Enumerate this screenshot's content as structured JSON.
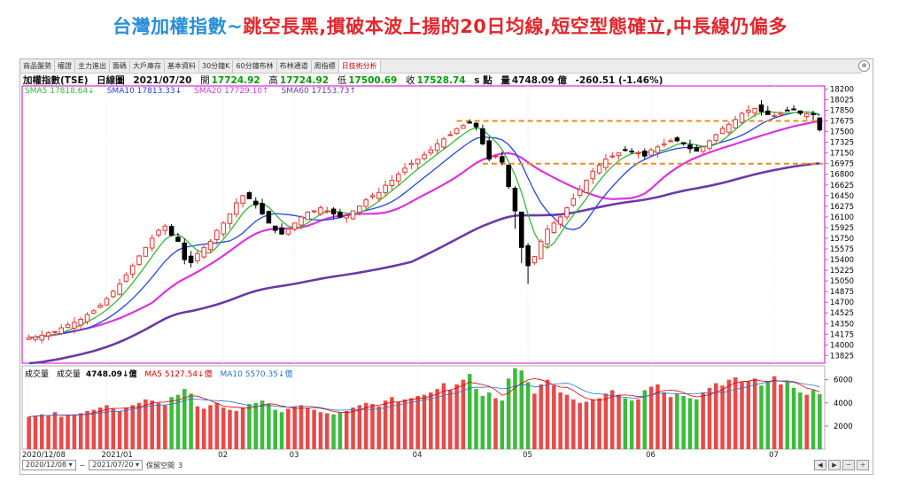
{
  "headline": {
    "part1": "台灣加權指數~",
    "part2": "跳空長黑,摜破本波上揚的20日均線,短空型態確立,中長線仍偏多"
  },
  "tabs": [
    "商品盤勢",
    "權證",
    "主力進出",
    "籌碼",
    "大戶庫存",
    "基本資料",
    "30分鐘K",
    "60分鐘布林",
    "布林通道",
    "周指標",
    "日技術分析"
  ],
  "active_tab": 10,
  "zoom_icon": "zoom-icon",
  "info": {
    "name": "加權指數(TSE)",
    "period": "日線圖",
    "date": "2021/07/20",
    "open_label": "開",
    "open": "17724.92",
    "high_label": "高",
    "high": "17724.92",
    "low_label": "低",
    "low": "17500.69",
    "close_label": "收",
    "close": "17528.74",
    "unit": "s 點",
    "vol_label": "量",
    "vol": "4748.09 億",
    "change": "-260.51 (-1.46%)"
  },
  "ma_legend": [
    {
      "text": "SMA5 17818.64↓",
      "color": "#33bb33"
    },
    {
      "text": "SMA10 17813.33↓",
      "color": "#2244ee"
    },
    {
      "text": "SMA20 17729.10↑",
      "color": "#dd33dd"
    },
    {
      "text": "SMA60 17153.73↑",
      "color": "#6a3aa8"
    }
  ],
  "vol_legend": {
    "title": "成交量",
    "name": "成交量",
    "value": "4748.09↓億",
    "ma5": "MA5 5127.54↓億",
    "ma10": "MA10 5570.35↓億",
    "ma5_color": "#dd0000",
    "ma10_color": "#2277cc"
  },
  "footer": {
    "start_date": "2020/12/08",
    "end_date": "2021/07/20",
    "keep_label": "保留空間",
    "keep_value": "3"
  },
  "chart_data": {
    "type": "candlestick",
    "title": "加權指數(TSE) 日線圖",
    "x_range": [
      "2020/12/08",
      "2021/07/20"
    ],
    "x_tick_labels": [
      "2020/12/08",
      "2021/01",
      "02",
      "03",
      "04",
      "05",
      "06",
      "07"
    ],
    "price_ticks": [
      18200,
      18025,
      17850,
      17675,
      17500,
      17325,
      17150,
      16975,
      16800,
      16625,
      16450,
      16275,
      16100,
      15925,
      15750,
      15575,
      15400,
      15225,
      15050,
      14875,
      14700,
      14525,
      14350,
      14175,
      14000,
      13825
    ],
    "price_ylim": [
      13700,
      18250
    ],
    "volume_ticks": [
      6000,
      4000,
      2000
    ],
    "volume_ylim": [
      0,
      7200
    ],
    "up_color": "#e8322f",
    "down_color": "#000000",
    "vol_up_color": "#e84a4a",
    "vol_down_color": "#3dbb3d",
    "last_bar": {
      "open": 17724.92,
      "high": 17724.92,
      "low": 17500.69,
      "close": 17528.74,
      "volume": 4748.09
    },
    "price_path": [
      14120,
      14130,
      14160,
      14200,
      14220,
      14280,
      14330,
      14370,
      14420,
      14500,
      14560,
      14650,
      14760,
      14880,
      15000,
      15150,
      15300,
      15460,
      15600,
      15750,
      15880,
      15950,
      15800,
      15700,
      15400,
      15350,
      15500,
      15600,
      15700,
      15880,
      16000,
      16150,
      16330,
      16450,
      16400,
      16300,
      16150,
      16000,
      15880,
      15820,
      15900,
      16000,
      16100,
      16180,
      16200,
      16250,
      16200,
      16150,
      16100,
      16120,
      16200,
      16280,
      16380,
      16450,
      16500,
      16620,
      16700,
      16800,
      16900,
      16980,
      17050,
      17120,
      17200,
      17300,
      17380,
      17450,
      17550,
      17600,
      17650,
      17580,
      17300,
      17050,
      17100,
      17000,
      16600,
      16200,
      15600,
      15300,
      15450,
      15700,
      15900,
      16000,
      16100,
      16250,
      16400,
      16550,
      16700,
      16850,
      16950,
      17050,
      17100,
      17150,
      17200,
      17180,
      17150,
      17100,
      17200,
      17250,
      17300,
      17350,
      17350,
      17300,
      17220,
      17180,
      17250,
      17350,
      17450,
      17550,
      17620,
      17700,
      17800,
      17850,
      17880,
      17830,
      17780,
      17760,
      17800,
      17850,
      17870,
      17800,
      17790,
      17780,
      17550
    ],
    "price_path_high": 17980,
    "dashed_levels": [
      17675,
      16975
    ],
    "volume_heights": [
      2800,
      2900,
      3000,
      2900,
      3200,
      2800,
      2900,
      3000,
      3100,
      3300,
      3400,
      3600,
      3800,
      3500,
      3300,
      3600,
      3800,
      4000,
      4300,
      4200,
      4000,
      3800,
      4500,
      4700,
      5200,
      4800,
      3700,
      3500,
      3800,
      4000,
      3600,
      3400,
      3300,
      3600,
      3900,
      4000,
      4200,
      3900,
      3400,
      3200,
      3500,
      3700,
      3800,
      3600,
      3400,
      3200,
      3100,
      3000,
      3200,
      3300,
      3600,
      3800,
      4000,
      3900,
      3700,
      4200,
      4500,
      4100,
      4300,
      4400,
      4600,
      4700,
      4900,
      5200,
      5700,
      5100,
      5600,
      6000,
      6500,
      5200,
      4600,
      4900,
      4400,
      4200,
      6100,
      7000,
      6800,
      5800,
      4800,
      5600,
      6000,
      5500,
      4900,
      4700,
      4300,
      4000,
      4100,
      4300,
      4400,
      4800,
      5100,
      4700,
      4400,
      4200,
      4300,
      5100,
      5400,
      5600,
      4900,
      4500,
      4800,
      4600,
      4400,
      4300,
      4900,
      5300,
      5700,
      5500,
      6000,
      6200,
      5800,
      5900,
      6100,
      5500,
      5900,
      6300,
      5600,
      5800,
      5300,
      4900,
      4700,
      5100,
      4748
    ],
    "series": [
      {
        "name": "SMA5",
        "last": 17818.64,
        "color": "#33bb33"
      },
      {
        "name": "SMA10",
        "last": 17813.33,
        "color": "#2244ee"
      },
      {
        "name": "SMA20",
        "last": 17729.1,
        "color": "#dd33dd"
      },
      {
        "name": "SMA60",
        "last": 17153.73,
        "color": "#6a3aa8"
      }
    ]
  }
}
